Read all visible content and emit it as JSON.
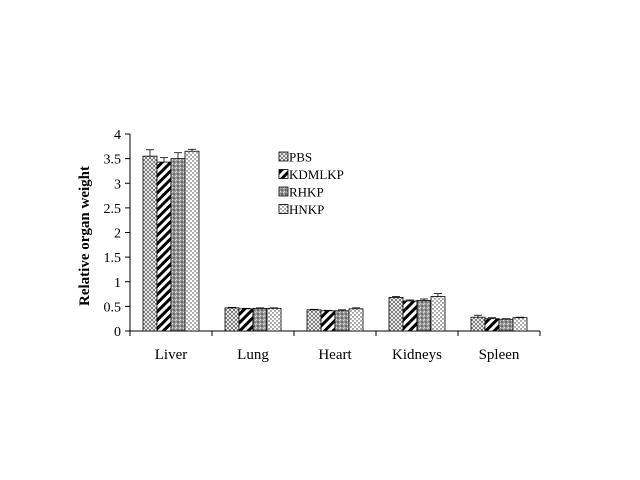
{
  "chart_data": {
    "type": "bar",
    "title": "",
    "xlabel": "",
    "ylabel": "Relative organ weight",
    "ylim": [
      0,
      4
    ],
    "yticks": [
      "0",
      "0.5",
      "1",
      "1.5",
      "2",
      "2.5",
      "3",
      "3.5",
      "4"
    ],
    "categories": [
      "Liver",
      "Lung",
      "Heart",
      "Kidneys",
      "Spleen"
    ],
    "series": [
      {
        "name": "PBS",
        "pattern": "crosshatch-fine",
        "values": [
          3.55,
          0.47,
          0.43,
          0.68,
          0.28
        ],
        "errors": [
          0.13,
          0.01,
          0.01,
          0.02,
          0.04
        ]
      },
      {
        "name": "KDMLKP",
        "pattern": "diagonal-stripes",
        "values": [
          3.43,
          0.45,
          0.41,
          0.61,
          0.25
        ],
        "errors": [
          0.09,
          0.01,
          0.01,
          0.02,
          0.02
        ]
      },
      {
        "name": "RHKP",
        "pattern": "crosshatch-dense",
        "values": [
          3.5,
          0.46,
          0.41,
          0.62,
          0.24
        ],
        "errors": [
          0.12,
          0.01,
          0.02,
          0.03,
          0.01
        ]
      },
      {
        "name": "HNKP",
        "pattern": "dots",
        "values": [
          3.65,
          0.46,
          0.45,
          0.7,
          0.27
        ],
        "errors": [
          0.04,
          0.01,
          0.02,
          0.06,
          0.01
        ]
      }
    ],
    "legend_position": "top-center",
    "grid": false,
    "error_bars": true
  },
  "colors": {
    "axis": "#000000",
    "bar_outline": "#000000",
    "background": "#ffffff"
  }
}
